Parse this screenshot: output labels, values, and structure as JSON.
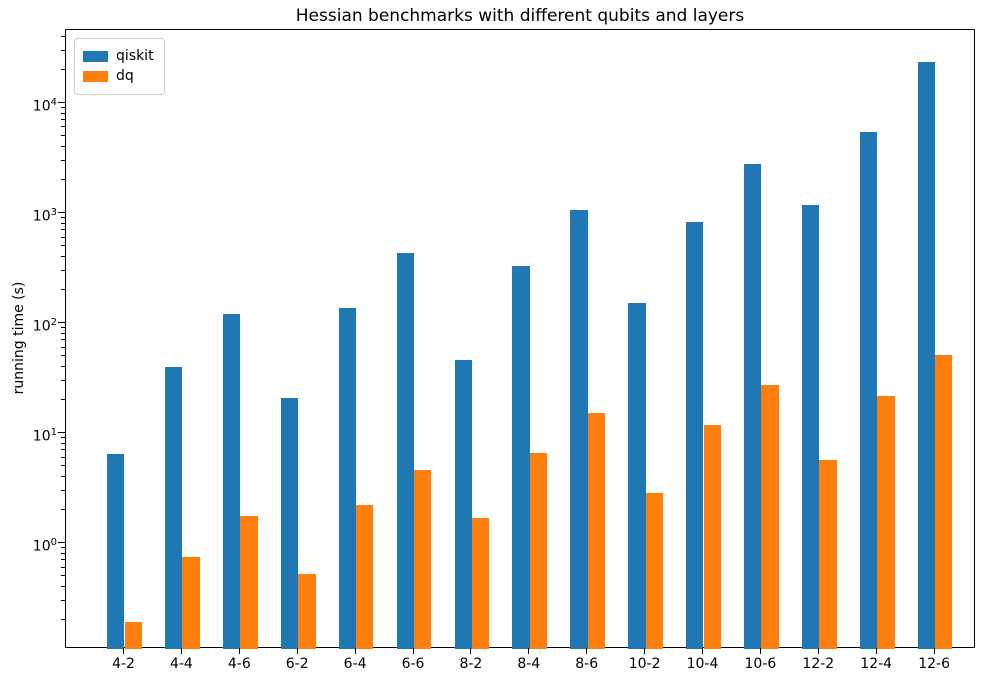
{
  "title": "Hessian benchmarks with different qubits and layers",
  "y_axis_label": "running time (s)",
  "legend": {
    "position": "upper left",
    "items": [
      {
        "label": "qiskit",
        "color": "#1f77b4"
      },
      {
        "label": "dq",
        "color": "#ff7f0e"
      }
    ]
  },
  "colors": {
    "series_qiskit": "#1f77b4",
    "series_dq": "#ff7f0e",
    "axis": "#000000",
    "legend_border": "#cccccc",
    "background": "#ffffff"
  },
  "chart_data": {
    "type": "bar",
    "title": "Hessian benchmarks with different qubits and layers",
    "xlabel": "",
    "ylabel": "running time (s)",
    "yscale": "log",
    "ylim": [
      0.11,
      46500
    ],
    "grid": false,
    "legend_position": "upper left",
    "categories": [
      "4-2",
      "4-4",
      "4-6",
      "6-2",
      "6-4",
      "6-6",
      "8-2",
      "8-4",
      "8-6",
      "10-2",
      "10-4",
      "10-6",
      "12-2",
      "12-4",
      "12-6"
    ],
    "series": [
      {
        "name": "qiskit",
        "color": "#1f77b4",
        "values": [
          6.5,
          40,
          121,
          21,
          138,
          437,
          47,
          331,
          1070,
          155,
          836,
          2790,
          1190,
          5550,
          24000
        ]
      },
      {
        "name": "dq",
        "color": "#ff7f0e",
        "values": [
          0.195,
          0.76,
          1.79,
          0.53,
          2.25,
          4.7,
          1.7,
          6.7,
          15.5,
          2.9,
          11.9,
          27.4,
          5.7,
          21.9,
          51.3
        ]
      }
    ],
    "y_tick_exponents": [
      0,
      1,
      2,
      3,
      4
    ],
    "y_tick_labels": [
      "10⁰",
      "10¹",
      "10²",
      "10³",
      "10⁴"
    ]
  }
}
